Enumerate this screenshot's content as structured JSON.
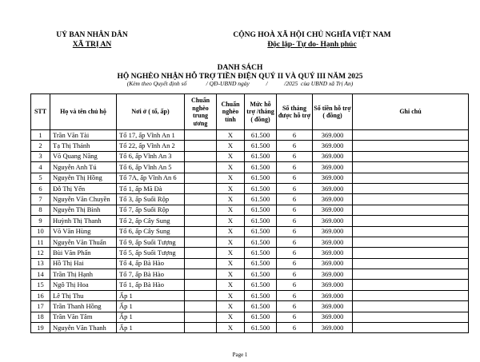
{
  "header": {
    "left": [
      "UỶ BAN NHÂN DÂN",
      "XÃ TRỊ AN"
    ],
    "right": [
      "CỘNG HOÀ XÃ HỘI CHỦ NGHĨA VIỆT NAM",
      "Độc lập- Tự do- Hạnh phúc"
    ]
  },
  "title": [
    "DANH SÁCH",
    "HỘ NGHÈO NHẬN HỖ TRỢ TIỀN ĐIỆN QUÝ II VÀ QUÝ III NĂM 2025"
  ],
  "note": "(Kèm theo Quyết định số             / QĐ-UBND ngày           /           /2025  của UBND xã Trị An)",
  "table": {
    "columns": [
      "STT",
      "Họ và tên chủ hộ",
      "Nơi ở ( tổ, ấp)",
      "Chuẩn nghèo trung ương",
      "Chuẩn nghèo tỉnh",
      "Mức hỗ trợ /tháng ( đồng)",
      "Số tháng được hỗ trợ",
      "Số tiền hỗ trợ ( đồng)",
      "Ghi chú"
    ],
    "rows": [
      [
        "1",
        "Trần Văn Tài",
        "Tổ 17, ấp Vĩnh An 1",
        "X",
        "61.500",
        "6",
        "369.000"
      ],
      [
        "2",
        "Tạ Thị Thảnh",
        "Tổ 22, ấp Vĩnh An 2",
        "X",
        "61.500",
        "6",
        "369.000"
      ],
      [
        "3",
        "Võ Quang Năng",
        "Tổ 6, ấp Vĩnh An 3",
        "X",
        "61.500",
        "6",
        "369.000"
      ],
      [
        "4",
        "Nguyễn Anh Tú",
        "Tổ 6, ấp Vĩnh An 5",
        "X",
        "61.500",
        "6",
        "369.000"
      ],
      [
        "5",
        "Nguyễn Thị Hồng",
        "Tổ 7A, ấp Vĩnh An 6",
        "X",
        "61.500",
        "6",
        "369.000"
      ],
      [
        "6",
        "Đỗ Thị Yến",
        "Tổ 1, ấp Mã Đà",
        "X",
        "61.500",
        "6",
        "369.000"
      ],
      [
        "7",
        "Nguyễn Văn Chuyền",
        "Tổ 3, ấp Suối Rộp",
        "X",
        "61.500",
        "6",
        "369.000"
      ],
      [
        "8",
        "Nguyễn Thị Bình",
        "Tổ 7, ấp Suối Rộp",
        "X",
        "61.500",
        "6",
        "369.000"
      ],
      [
        "9",
        "Huỳnh Thị Thanh",
        "Tổ 2, ấp Cây Sung",
        "X",
        "61.500",
        "6",
        "369.000"
      ],
      [
        "10",
        "Võ Văn Hùng",
        "Tổ 6, ấp Cây Sung",
        "X",
        "61.500",
        "6",
        "369.000"
      ],
      [
        "11",
        "Nguyễn Văn Thuấn",
        "Tổ 9, ấp Suối Tượng",
        "X",
        "61.500",
        "6",
        "369.000"
      ],
      [
        "12",
        "Bùi Văn Phấn",
        "Tổ 5, ấp Suối Tượng",
        "X",
        "61.500",
        "6",
        "369.000"
      ],
      [
        "13",
        "Hồ Thị Hai",
        "Tổ 4, ấp Bà Hào",
        "X",
        "61.500",
        "6",
        "369.000"
      ],
      [
        "14",
        "Trần Thị Hạnh",
        "Tổ 7, ấp Bà Hào",
        "X",
        "61.500",
        "6",
        "369.000"
      ],
      [
        "15",
        "Ngô Thị Hoa",
        "Tổ 1, ấp Bà Hào",
        "X",
        "61.500",
        "6",
        "369.000"
      ],
      [
        "16",
        "Lê Thị Thu",
        "Ấp 1",
        "X",
        "61.500",
        "6",
        "369.000"
      ],
      [
        "17",
        "Trần Thanh Hồng",
        "Ấp 1",
        "X",
        "61.500",
        "6",
        "369.000"
      ],
      [
        "18",
        "Trần Văn Tâm",
        "Ấp 1",
        "X",
        "61.500",
        "6",
        "369.000"
      ],
      [
        "19",
        "Nguyễn Văn Thanh",
        "Ấp 1",
        "X",
        "61.500",
        "6",
        "369.000"
      ]
    ]
  },
  "footer": "Page 1"
}
